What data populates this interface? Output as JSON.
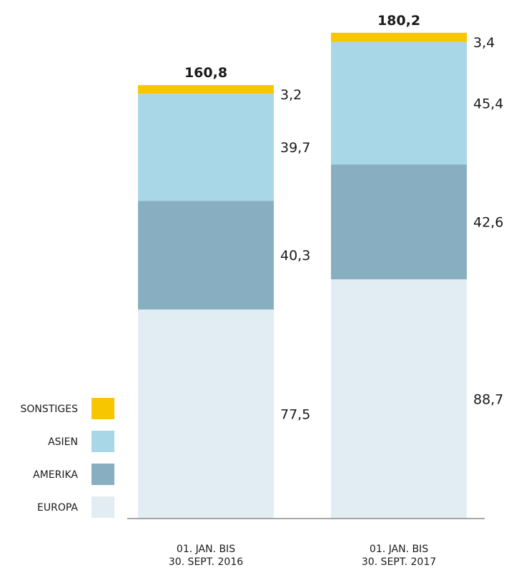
{
  "chart_data": {
    "type": "bar",
    "stacked": true,
    "categories": [
      [
        "01. JAN. BIS",
        "30. SEPT. 2016"
      ],
      [
        "01. JAN. BIS",
        "30. SEPT. 2017"
      ]
    ],
    "series": [
      {
        "name": "EUROPA",
        "values": [
          77.5,
          88.7
        ],
        "value_labels": [
          "77,5",
          "88,7"
        ],
        "color": "#e2edf3"
      },
      {
        "name": "AMERIKA",
        "values": [
          40.3,
          42.6
        ],
        "value_labels": [
          "40,3",
          "42,6"
        ],
        "color": "#88afc1"
      },
      {
        "name": "ASIEN",
        "values": [
          39.7,
          45.4
        ],
        "value_labels": [
          "39,7",
          "45,4"
        ],
        "color": "#a8d7e8"
      },
      {
        "name": "SONSTIGES",
        "values": [
          3.2,
          3.4
        ],
        "value_labels": [
          "3,2",
          "3,4"
        ],
        "color": "#f7c600"
      }
    ],
    "totals": [
      160.8,
      180.2
    ],
    "total_labels": [
      "160,8",
      "180,2"
    ],
    "legend_order": [
      "SONSTIGES",
      "ASIEN",
      "AMERIKA",
      "EUROPA"
    ],
    "legend_placement": "bottom-left",
    "title": "",
    "xlabel": "",
    "ylabel": "",
    "ylim": [
      0,
      180.2
    ],
    "grid": false
  }
}
